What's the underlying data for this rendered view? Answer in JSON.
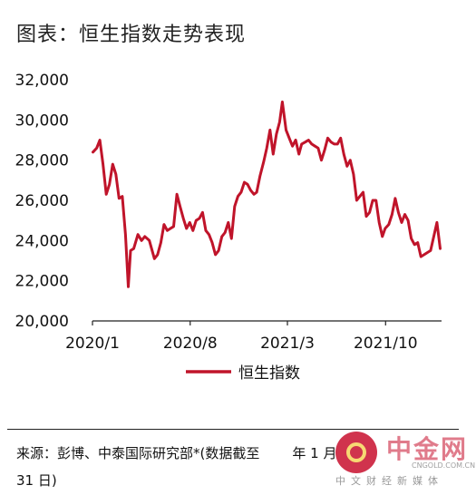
{
  "figure": {
    "title": "图表：恒生指数走势表现",
    "source": "来源：彭博、中泰国际研究部*(数据截至",
    "source_tail_year": "年 1 月",
    "source_line2": "31 日)"
  },
  "watermark": {
    "name": "中金网",
    "url": "CNGOLD.COM.CN",
    "tagline": "中文财经新媒体"
  },
  "colors": {
    "series": "#c0142a",
    "axis": "#222222"
  },
  "chart_data": {
    "type": "line",
    "title": "",
    "xlabel": "",
    "ylabel": "",
    "ylim": [
      20000,
      32000
    ],
    "yticks": [
      20000,
      22000,
      24000,
      26000,
      28000,
      30000,
      32000
    ],
    "ytick_labels": [
      "20,000",
      "22,000",
      "24,000",
      "26,000",
      "28,000",
      "30,000",
      "32,000"
    ],
    "xlim": [
      "2020-01-01",
      "2022-01-31"
    ],
    "xticks": [
      "2020-01-01",
      "2020-08-01",
      "2021-03-01",
      "2021-10-01"
    ],
    "xtick_labels": [
      "2020/1",
      "2020/8",
      "2021/3",
      "2021/10"
    ],
    "legend": "bottom-center",
    "grid": false,
    "series": [
      {
        "name": "恒生指数",
        "color": "#c0142a",
        "x": [
          "2020-01-02",
          "2020-01-10",
          "2020-01-17",
          "2020-01-24",
          "2020-01-31",
          "2020-02-07",
          "2020-02-14",
          "2020-02-21",
          "2020-02-28",
          "2020-03-06",
          "2020-03-13",
          "2020-03-19",
          "2020-03-24",
          "2020-03-31",
          "2020-04-09",
          "2020-04-17",
          "2020-04-24",
          "2020-05-04",
          "2020-05-15",
          "2020-05-22",
          "2020-05-29",
          "2020-06-05",
          "2020-06-12",
          "2020-06-19",
          "2020-06-26",
          "2020-07-03",
          "2020-07-10",
          "2020-07-17",
          "2020-07-24",
          "2020-07-31",
          "2020-08-07",
          "2020-08-14",
          "2020-08-21",
          "2020-08-28",
          "2020-09-04",
          "2020-09-11",
          "2020-09-18",
          "2020-09-25",
          "2020-10-02",
          "2020-10-09",
          "2020-10-16",
          "2020-10-23",
          "2020-10-30",
          "2020-11-06",
          "2020-11-13",
          "2020-11-20",
          "2020-11-27",
          "2020-12-04",
          "2020-12-11",
          "2020-12-18",
          "2020-12-24",
          "2020-12-31",
          "2021-01-08",
          "2021-01-15",
          "2021-01-22",
          "2021-01-29",
          "2021-02-05",
          "2021-02-12",
          "2021-02-18",
          "2021-02-26",
          "2021-03-05",
          "2021-03-12",
          "2021-03-19",
          "2021-03-26",
          "2021-04-01",
          "2021-04-09",
          "2021-04-16",
          "2021-04-23",
          "2021-04-30",
          "2021-05-07",
          "2021-05-14",
          "2021-05-21",
          "2021-05-28",
          "2021-06-04",
          "2021-06-11",
          "2021-06-18",
          "2021-06-25",
          "2021-07-02",
          "2021-07-09",
          "2021-07-16",
          "2021-07-23",
          "2021-07-30",
          "2021-08-06",
          "2021-08-13",
          "2021-08-20",
          "2021-08-27",
          "2021-09-03",
          "2021-09-10",
          "2021-09-17",
          "2021-09-24",
          "2021-09-30",
          "2021-10-08",
          "2021-10-15",
          "2021-10-22",
          "2021-10-29",
          "2021-11-05",
          "2021-11-12",
          "2021-11-19",
          "2021-11-26",
          "2021-12-03",
          "2021-12-10",
          "2021-12-17",
          "2021-12-24",
          "2021-12-31",
          "2022-01-07",
          "2022-01-14",
          "2022-01-21",
          "2022-01-28"
        ],
        "values": [
          28400,
          28600,
          29000,
          27800,
          26300,
          26800,
          27800,
          27300,
          26100,
          26200,
          24300,
          21700,
          23500,
          23600,
          24300,
          24000,
          24200,
          24000,
          23100,
          23300,
          23900,
          24800,
          24500,
          24600,
          24700,
          26300,
          25700,
          25100,
          24600,
          24900,
          24500,
          25000,
          25100,
          25400,
          24500,
          24300,
          23900,
          23300,
          23500,
          24200,
          24400,
          24900,
          24100,
          25700,
          26200,
          26400,
          26900,
          26800,
          26500,
          26300,
          26400,
          27200,
          27900,
          28600,
          29500,
          28300,
          29300,
          29900,
          30900,
          29500,
          29100,
          28700,
          29000,
          28300,
          28800,
          28900,
          29000,
          28800,
          28700,
          28600,
          28000,
          28500,
          29100,
          28900,
          28800,
          28800,
          29100,
          28300,
          27700,
          28000,
          27300,
          26000,
          26200,
          26400,
          25200,
          25400,
          26000,
          26000,
          24900,
          24200,
          24600,
          24800,
          25300,
          26100,
          25400,
          24900,
          25300,
          25000,
          24100,
          23800,
          23900,
          23200,
          23300,
          23400,
          23500,
          24200,
          24900,
          23600
        ]
      }
    ]
  }
}
